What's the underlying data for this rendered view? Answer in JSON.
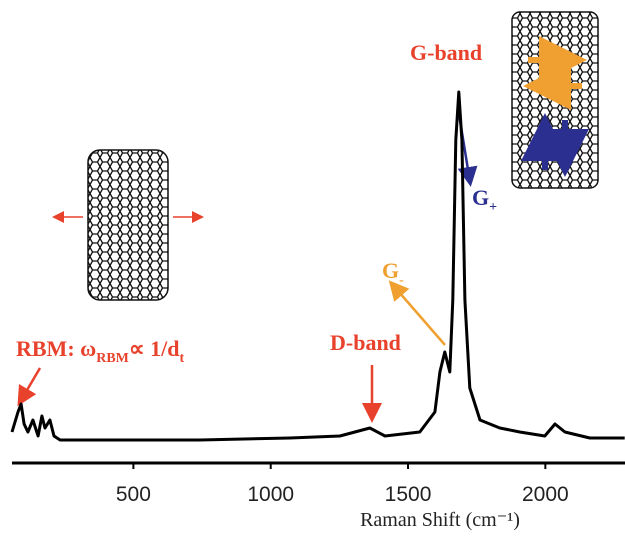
{
  "chart_data": {
    "type": "line",
    "x_label": "Raman Shift (cm⁻¹)",
    "xlim": [
      58,
      2290
    ],
    "xticks": [
      500,
      1000,
      1500,
      2000
    ],
    "ylim": [
      0,
      100
    ],
    "series": [
      {
        "color": "#000000",
        "x": [
          58,
          80,
          91,
          102,
          116,
          134,
          153,
          167,
          178,
          196,
          211,
          233,
          378,
          742,
          1070,
          1252,
          1361,
          1416,
          1543,
          1598,
          1616,
          1634,
          1652,
          1663,
          1674,
          1685,
          1696,
          1707,
          1725,
          1762,
          1834,
          1907,
          1998,
          2035,
          2071,
          2162,
          2289
        ],
        "values": [
          7,
          12,
          14,
          9,
          7,
          10,
          6,
          11,
          8,
          10,
          6,
          5,
          5,
          5,
          5.5,
          6,
          8,
          6,
          7,
          12,
          22,
          27,
          22,
          40,
          80,
          92,
          80,
          40,
          18,
          10,
          8,
          7,
          6,
          9,
          7,
          5.5,
          5.5
        ]
      }
    ],
    "annotations": {
      "g_band": "G-band",
      "g_plus": [
        "G",
        "+"
      ],
      "g_minus": [
        "G",
        "-"
      ],
      "d_band": "D-band",
      "rbm": [
        "RBM: ω",
        "RBM",
        "∝ 1/d",
        "t"
      ]
    }
  }
}
